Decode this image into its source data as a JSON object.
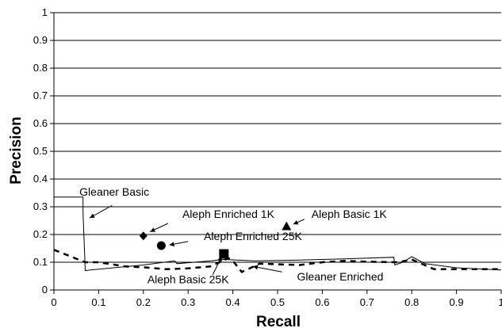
{
  "chart_data": {
    "type": "line",
    "title": "",
    "xlabel": "Recall",
    "ylabel": "Precision",
    "xlim": [
      0,
      1
    ],
    "ylim": [
      0,
      1
    ],
    "grid": "horizontal",
    "x_ticks": [
      "0",
      "0.1",
      "0.2",
      "0.3",
      "0.4",
      "0.5",
      "0.6",
      "0.7",
      "0.8",
      "0.9",
      "1"
    ],
    "y_ticks": [
      "0",
      "0.1",
      "0.2",
      "0.3",
      "0.4",
      "0.5",
      "0.6",
      "0.7",
      "0.8",
      "0.9",
      "1"
    ],
    "series": [
      {
        "name": "Gleaner Basic",
        "style": "solid",
        "color": "#000000",
        "points": [
          [
            0,
            0.335
          ],
          [
            0.065,
            0.335
          ],
          [
            0.065,
            0.28
          ],
          [
            0.07,
            0.07
          ],
          [
            0.1,
            0.075
          ],
          [
            0.2,
            0.09
          ],
          [
            0.27,
            0.105
          ],
          [
            0.275,
            0.095
          ],
          [
            0.35,
            0.105
          ],
          [
            0.38,
            0.11
          ],
          [
            0.45,
            0.105
          ],
          [
            0.55,
            0.108
          ],
          [
            0.65,
            0.112
          ],
          [
            0.76,
            0.118
          ],
          [
            0.762,
            0.09
          ],
          [
            0.78,
            0.1
          ],
          [
            0.8,
            0.12
          ],
          [
            0.83,
            0.095
          ],
          [
            0.9,
            0.08
          ],
          [
            1.0,
            0.072
          ]
        ]
      },
      {
        "name": "Gleaner Enriched",
        "style": "dashed",
        "color": "#000000",
        "points": [
          [
            0,
            0.145
          ],
          [
            0.07,
            0.1
          ],
          [
            0.1,
            0.1
          ],
          [
            0.16,
            0.085
          ],
          [
            0.2,
            0.082
          ],
          [
            0.25,
            0.075
          ],
          [
            0.3,
            0.078
          ],
          [
            0.35,
            0.085
          ],
          [
            0.39,
            0.115
          ],
          [
            0.4,
            0.105
          ],
          [
            0.42,
            0.065
          ],
          [
            0.46,
            0.095
          ],
          [
            0.55,
            0.09
          ],
          [
            0.6,
            0.1
          ],
          [
            0.65,
            0.105
          ],
          [
            0.7,
            0.102
          ],
          [
            0.77,
            0.1
          ],
          [
            0.8,
            0.11
          ],
          [
            0.85,
            0.075
          ],
          [
            0.9,
            0.075
          ],
          [
            1.0,
            0.075
          ]
        ]
      }
    ],
    "markers": [
      {
        "name": "Aleph Enriched 1K",
        "shape": "diamond",
        "x": 0.2,
        "y": 0.195
      },
      {
        "name": "Aleph Enriched 25K",
        "shape": "circle",
        "x": 0.24,
        "y": 0.16
      },
      {
        "name": "Aleph Basic 1K",
        "shape": "triangle",
        "x": 0.52,
        "y": 0.23
      },
      {
        "name": "Aleph Basic 25K",
        "shape": "square",
        "x": 0.38,
        "y": 0.13
      }
    ],
    "annotations": [
      {
        "text": "Gleaner Basic",
        "text_x": 0.135,
        "text_y": 0.34,
        "arrow_from_x": 0.13,
        "arrow_from_y": 0.305,
        "arrow_to_x": 0.08,
        "arrow_to_y": 0.26
      },
      {
        "text": "Aleph Enriched 1K",
        "text_x": 0.39,
        "text_y": 0.26,
        "arrow_from_x": 0.255,
        "arrow_from_y": 0.24,
        "arrow_to_x": 0.215,
        "arrow_to_y": 0.21
      },
      {
        "text": "Aleph Enriched 25K",
        "text_x": 0.445,
        "text_y": 0.18,
        "arrow_from_x": 0.3,
        "arrow_from_y": 0.175,
        "arrow_to_x": 0.258,
        "arrow_to_y": 0.162
      },
      {
        "text": "Aleph Basic 1K",
        "text_x": 0.66,
        "text_y": 0.26,
        "arrow_from_x": 0.56,
        "arrow_from_y": 0.255,
        "arrow_to_x": 0.535,
        "arrow_to_y": 0.237
      },
      {
        "text": "Aleph Basic 25K",
        "text_x": 0.3,
        "text_y": 0.025,
        "arrow_from_x": 0.355,
        "arrow_from_y": 0.055,
        "arrow_to_x": 0.375,
        "arrow_to_y": 0.12
      },
      {
        "text": "Gleaner Enriched",
        "text_x": 0.64,
        "text_y": 0.035,
        "arrow_from_x": 0.51,
        "arrow_from_y": 0.065,
        "arrow_to_x": 0.445,
        "arrow_to_y": 0.085
      }
    ]
  }
}
